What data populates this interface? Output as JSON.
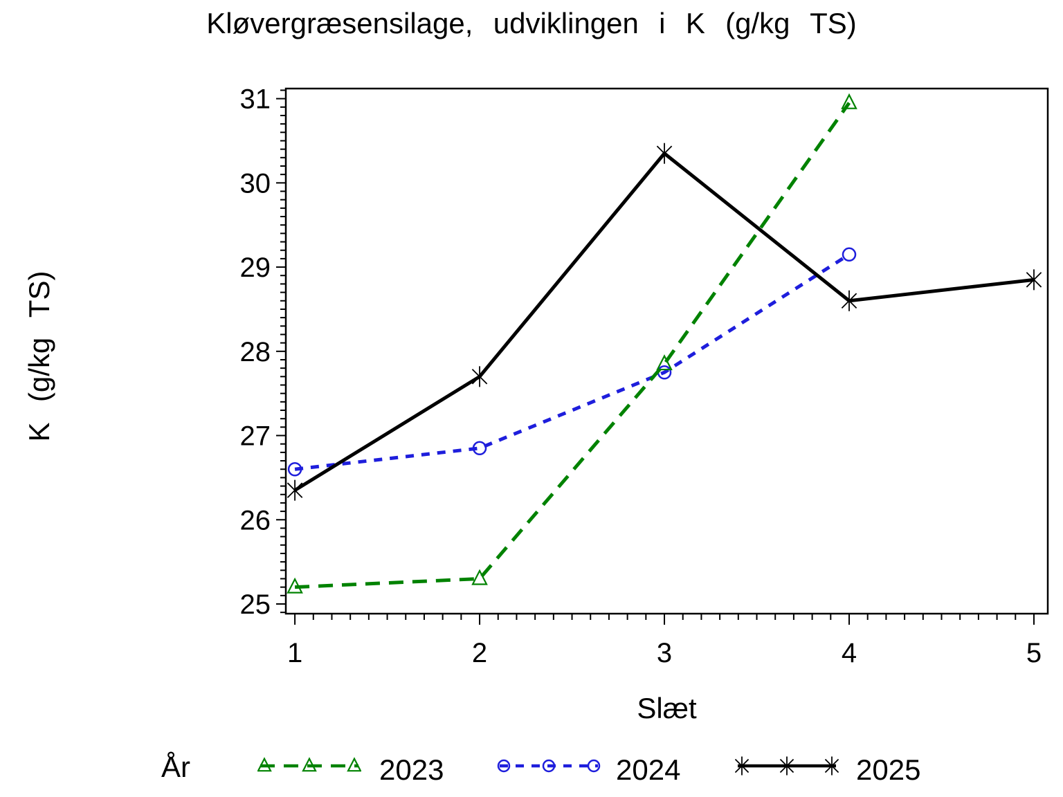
{
  "chart_data": {
    "type": "line",
    "title": "Kløvergræsensilage, udviklingen i K (g/kg TS)",
    "xlabel": "Slæt",
    "ylabel": "K (g/kg TS)",
    "legend_title": "År",
    "legend_position": "bottom",
    "grid": false,
    "xlim": [
      0.951,
      5.075
    ],
    "ylim": [
      24.885,
      31.12
    ],
    "x_ticks": [
      1,
      2,
      3,
      4,
      5
    ],
    "y_ticks": [
      25,
      26,
      27,
      28,
      29,
      30,
      31
    ],
    "minor_tick_step_x": 0.1,
    "minor_tick_step_y": 0.1,
    "series": [
      {
        "name": "2023",
        "color": "#008200",
        "line_style": "dashed",
        "marker": "triangle",
        "x": [
          1,
          2,
          3,
          4
        ],
        "values": [
          25.2,
          25.3,
          27.85,
          30.95
        ]
      },
      {
        "name": "2024",
        "color": "#1e1edc",
        "line_style": "dashed-short",
        "marker": "circle",
        "x": [
          1,
          2,
          3,
          4
        ],
        "values": [
          26.6,
          26.85,
          27.75,
          29.15
        ]
      },
      {
        "name": "2025",
        "color": "#000000",
        "line_style": "solid",
        "marker": "asterisk",
        "x": [
          1,
          2,
          3,
          4,
          5
        ],
        "values": [
          26.35,
          27.7,
          30.35,
          28.6,
          28.85
        ]
      }
    ]
  }
}
